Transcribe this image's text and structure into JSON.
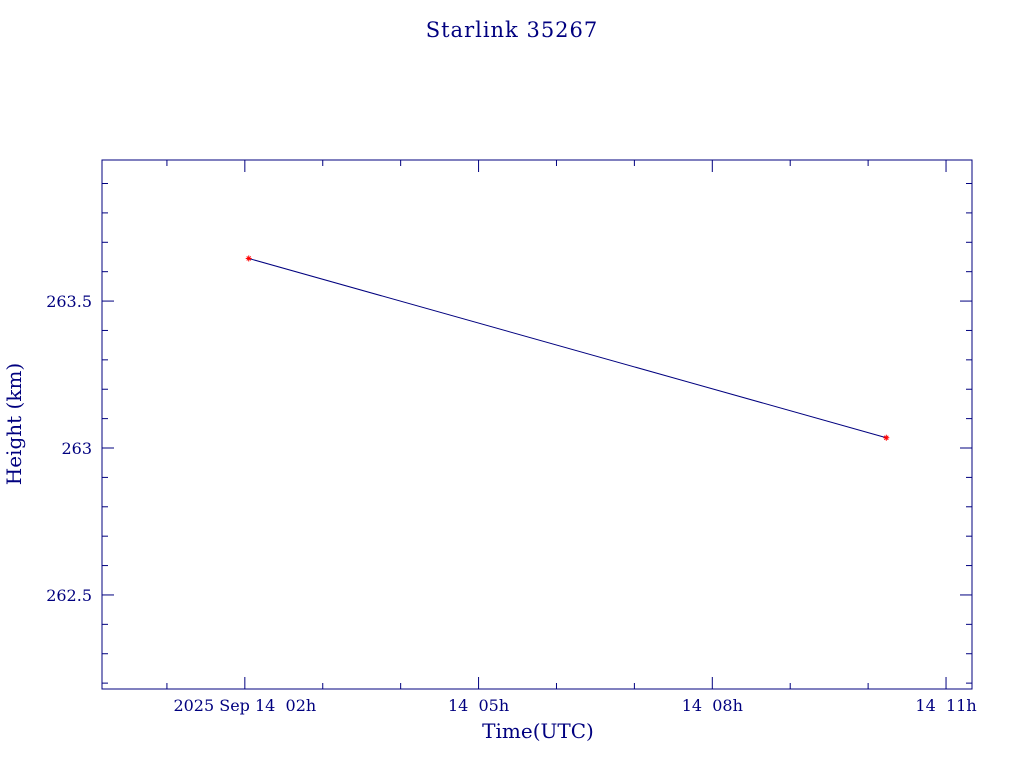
{
  "chart_data": {
    "type": "line",
    "title": "Starlink 35267",
    "xlabel": "Time(UTC)",
    "ylabel": "Height (km)",
    "xlim": [
      "2025-09-14T00:10",
      "2025-09-14T11:20"
    ],
    "ylim": [
      262.18,
      263.98
    ],
    "x_ticks": [
      {
        "value": "2025-09-14T02:00",
        "label": "2025 Sep 14  02h"
      },
      {
        "value": "2025-09-14T05:00",
        "label": "14  05h"
      },
      {
        "value": "2025-09-14T08:00",
        "label": "14  08h"
      },
      {
        "value": "2025-09-14T11:00",
        "label": "14  11h"
      }
    ],
    "y_ticks": [
      {
        "value": 262.5,
        "label": "262.5"
      },
      {
        "value": 263,
        "label": "263"
      },
      {
        "value": 263.5,
        "label": "263.5"
      }
    ],
    "grid": false,
    "colors": {
      "line": "#00007f",
      "marker": "#ff0000",
      "axis": "#00007f",
      "text": "#00007f"
    },
    "series": [
      {
        "points": [
          {
            "x": "2025-09-14T02:03",
            "y": 263.645
          },
          {
            "x": "2025-09-14T10:14",
            "y": 263.035
          }
        ]
      }
    ]
  }
}
